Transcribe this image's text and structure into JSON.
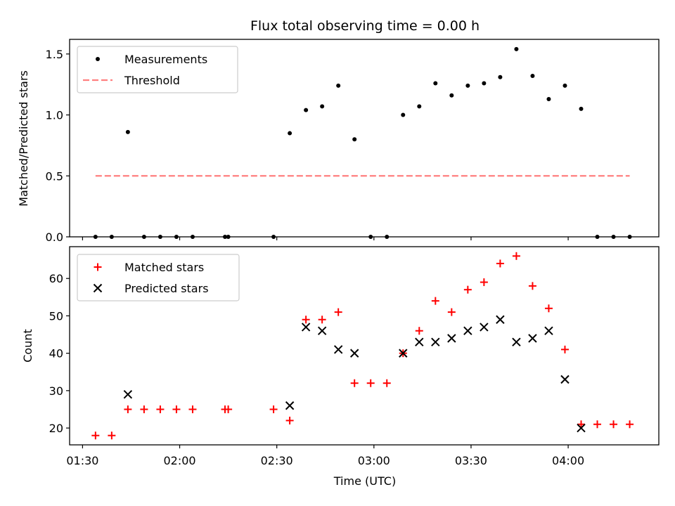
{
  "title": "Flux total observing time = 0.00 h",
  "colors": {
    "measurement": "#000000",
    "threshold": "#ff7f7f",
    "matched": "#ff0000",
    "predicted": "#000000"
  },
  "chart_data": [
    {
      "type": "scatter",
      "panel": "top",
      "title": "Flux total observing time = 0.00 h",
      "ylabel": "Matched/Predicted stars",
      "xlabel": "",
      "xlim": [
        "01:26",
        "04:28"
      ],
      "ylim": [
        0,
        1.62
      ],
      "yticks": [
        0.0,
        0.5,
        1.0,
        1.5
      ],
      "ytick_labels": [
        "0.0",
        "0.5",
        "1.0",
        "1.5"
      ],
      "legend_position": "upper-left",
      "series": [
        {
          "name": "Measurements",
          "marker": "dot",
          "x": [
            "01:34",
            "01:39",
            "01:44",
            "01:49",
            "01:54",
            "01:59",
            "02:04",
            "02:14",
            "02:15",
            "02:29",
            "02:34",
            "02:39",
            "02:44",
            "02:49",
            "02:54",
            "02:59",
            "03:04",
            "03:09",
            "03:14",
            "03:19",
            "03:24",
            "03:29",
            "03:34",
            "03:39",
            "03:44",
            "03:49",
            "03:54",
            "03:59",
            "04:04",
            "04:09",
            "04:14",
            "04:19"
          ],
          "y": [
            0,
            0,
            0.86,
            0,
            0,
            0,
            0,
            0,
            0,
            0,
            0.85,
            1.04,
            1.07,
            1.24,
            0.8,
            0,
            0,
            1.0,
            1.07,
            1.26,
            1.16,
            1.24,
            1.26,
            1.31,
            1.54,
            1.32,
            1.13,
            1.24,
            1.05,
            0,
            0,
            0
          ]
        },
        {
          "name": "Threshold",
          "style": "dashed",
          "x": [
            "01:34",
            "04:19"
          ],
          "y": [
            0.5,
            0.5
          ]
        }
      ]
    },
    {
      "type": "scatter",
      "panel": "bottom",
      "xlabel": "Time (UTC)",
      "ylabel": "Count",
      "xlim": [
        "01:26",
        "04:28"
      ],
      "ylim": [
        15.5,
        68.5
      ],
      "xticks": [
        "01:30",
        "02:00",
        "02:30",
        "03:00",
        "03:30",
        "04:00"
      ],
      "xtick_labels": [
        "01:30",
        "02:00",
        "02:30",
        "03:00",
        "03:30",
        "04:00"
      ],
      "yticks": [
        20,
        30,
        40,
        50,
        60
      ],
      "ytick_labels": [
        "20",
        "30",
        "40",
        "50",
        "60"
      ],
      "legend_position": "upper-left",
      "series": [
        {
          "name": "Matched stars",
          "marker": "plus",
          "x": [
            "01:34",
            "01:39",
            "01:44",
            "01:49",
            "01:54",
            "01:59",
            "02:04",
            "02:14",
            "02:15",
            "02:29",
            "02:34",
            "02:39",
            "02:44",
            "02:49",
            "02:54",
            "02:59",
            "03:04",
            "03:09",
            "03:14",
            "03:19",
            "03:24",
            "03:29",
            "03:34",
            "03:39",
            "03:44",
            "03:49",
            "03:54",
            "03:59",
            "04:04",
            "04:09",
            "04:14",
            "04:19"
          ],
          "y": [
            18,
            18,
            25,
            25,
            25,
            25,
            25,
            25,
            25,
            25,
            22,
            49,
            49,
            51,
            32,
            32,
            32,
            40,
            46,
            54,
            51,
            57,
            59,
            64,
            66,
            58,
            52,
            41,
            21,
            21,
            21,
            21
          ]
        },
        {
          "name": "Predicted stars",
          "marker": "x",
          "x": [
            "01:44",
            "02:34",
            "02:39",
            "02:44",
            "02:49",
            "02:54",
            "03:09",
            "03:14",
            "03:19",
            "03:24",
            "03:29",
            "03:34",
            "03:39",
            "03:44",
            "03:49",
            "03:54",
            "03:59",
            "04:04"
          ],
          "y": [
            29,
            26,
            47,
            46,
            41,
            40,
            40,
            43,
            43,
            44,
            46,
            47,
            49,
            43,
            44,
            46,
            33,
            20
          ]
        }
      ]
    }
  ]
}
